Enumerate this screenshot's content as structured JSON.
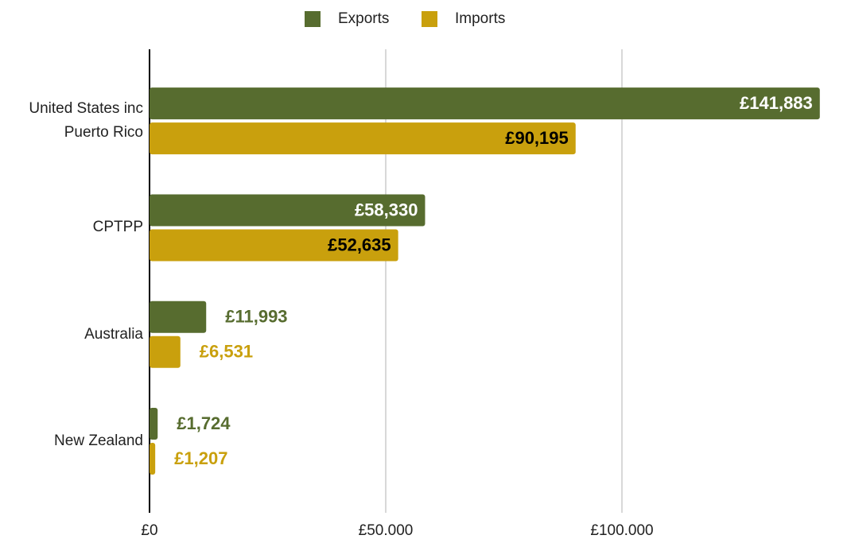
{
  "chart_data": {
    "type": "bar",
    "orientation": "horizontal",
    "categories": [
      "United States inc Puerto Rico",
      "CPTPP",
      "Australia",
      "New Zealand"
    ],
    "series": [
      {
        "name": "Exports",
        "color": "#576c2f",
        "values": [
          141883,
          58330,
          11993,
          1724
        ],
        "value_labels": [
          "£141,883",
          "£58,330",
          "£11,993",
          "£1,724"
        ]
      },
      {
        "name": "Imports",
        "color": "#c9a00d",
        "values": [
          90195,
          52635,
          6531,
          1207
        ],
        "value_labels": [
          "£90,195",
          "£52,635",
          "£6,531",
          "£1,207"
        ]
      }
    ],
    "xlim": [
      0,
      148000
    ],
    "xticks": [
      {
        "value": 0,
        "label": "£0"
      },
      {
        "value": 50000,
        "label": "£50.000"
      },
      {
        "value": 100000,
        "label": "£100.000"
      }
    ],
    "grid": true,
    "legend": "top"
  }
}
